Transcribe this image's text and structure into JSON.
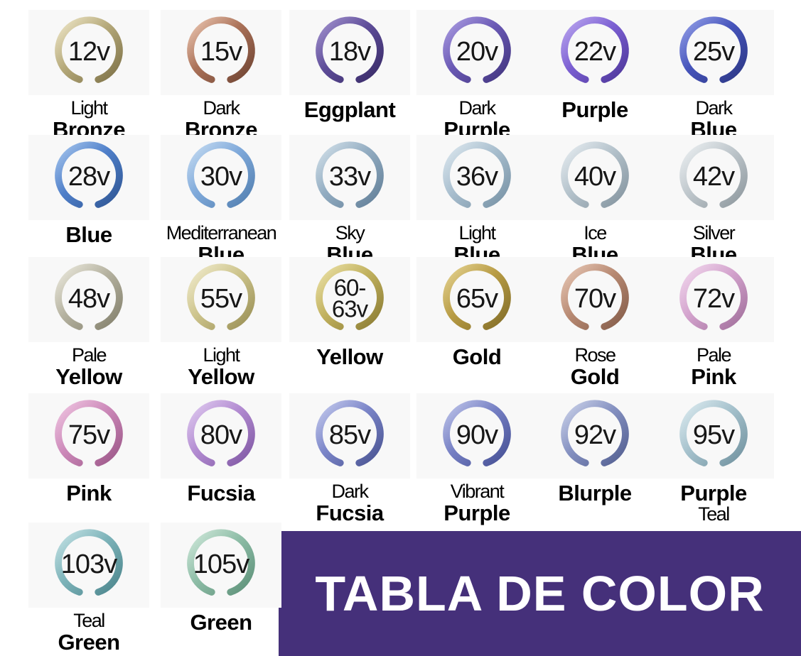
{
  "banner": {
    "text": "TABLA DE COLOR",
    "background": "#45307a",
    "text_color": "#ffffff"
  },
  "rings": [
    {
      "voltage": [
        "12v"
      ],
      "label": [
        {
          "text": "Light",
          "bold": false
        },
        {
          "text": "Bronze",
          "bold": true
        }
      ],
      "colors": {
        "light": "#efe7c8",
        "mid": "#b5a97a",
        "dark": "#7d7147"
      }
    },
    {
      "voltage": [
        "15v"
      ],
      "label": [
        {
          "text": "Dark",
          "bold": false
        },
        {
          "text": "Bronze",
          "bold": true
        }
      ],
      "colors": {
        "light": "#ecc7b2",
        "mid": "#aa7158",
        "dark": "#6f4433"
      }
    },
    {
      "voltage": [
        "18v"
      ],
      "label": [
        {
          "text": "Eggplant",
          "bold": true
        }
      ],
      "colors": {
        "light": "#a393cf",
        "mid": "#5e4d99",
        "dark": "#382a66"
      }
    },
    {
      "voltage": [
        "20v"
      ],
      "label": [
        {
          "text": "Dark",
          "bold": false
        },
        {
          "text": "Purple",
          "bold": true
        }
      ],
      "colors": {
        "light": "#ab9de2",
        "mid": "#6a59b4",
        "dark": "#42357f"
      }
    },
    {
      "voltage": [
        "22v"
      ],
      "label": [
        {
          "text": "Purple",
          "bold": true
        }
      ],
      "colors": {
        "light": "#bca8f0",
        "mid": "#7b5fd2",
        "dark": "#4d3699"
      }
    },
    {
      "voltage": [
        "25v"
      ],
      "label": [
        {
          "text": "Dark",
          "bold": false
        },
        {
          "text": "Blue",
          "bold": true
        }
      ],
      "colors": {
        "light": "#94a0e8",
        "mid": "#4654bb",
        "dark": "#2c3784"
      }
    },
    {
      "voltage": [
        "28v"
      ],
      "label": [
        {
          "text": "Blue",
          "bold": true
        }
      ],
      "colors": {
        "light": "#a6c6ee",
        "mid": "#4f7fc9",
        "dark": "#2f5694"
      }
    },
    {
      "voltage": [
        "30v"
      ],
      "label": [
        {
          "text": "Mediterranean",
          "bold": false
        },
        {
          "text": "Blue",
          "bold": true
        }
      ],
      "colors": {
        "light": "#c6dcf2",
        "mid": "#7fa9da",
        "dark": "#527fb0"
      }
    },
    {
      "voltage": [
        "33v"
      ],
      "label": [
        {
          "text": "Sky",
          "bold": false
        },
        {
          "text": "Blue",
          "bold": true
        }
      ],
      "colors": {
        "light": "#d3e1ea",
        "mid": "#92acc1",
        "dark": "#627f98"
      }
    },
    {
      "voltage": [
        "36v"
      ],
      "label": [
        {
          "text": "Light",
          "bold": false
        },
        {
          "text": "Blue",
          "bold": true
        }
      ],
      "colors": {
        "light": "#dde8ef",
        "mid": "#a8bece",
        "dark": "#7792a5"
      }
    },
    {
      "voltage": [
        "40v"
      ],
      "label": [
        {
          "text": "Ice",
          "bold": false
        },
        {
          "text": "Blue",
          "bold": true
        }
      ],
      "colors": {
        "light": "#e7edf1",
        "mid": "#b4c2cb",
        "dark": "#84949f"
      }
    },
    {
      "voltage": [
        "42v"
      ],
      "label": [
        {
          "text": "Silver",
          "bold": false
        },
        {
          "text": "Blue",
          "bold": true
        }
      ],
      "colors": {
        "light": "#ecf0f2",
        "mid": "#bfc7cc",
        "dark": "#8e989e"
      }
    },
    {
      "voltage": [
        "48v"
      ],
      "label": [
        {
          "text": "Pale",
          "bold": false
        },
        {
          "text": "Yellow",
          "bold": true
        }
      ],
      "colors": {
        "light": "#eceade",
        "mid": "#b5b2a0",
        "dark": "#83806c"
      }
    },
    {
      "voltage": [
        "55v"
      ],
      "label": [
        {
          "text": "Light",
          "bold": false
        },
        {
          "text": "Yellow",
          "bold": true
        }
      ],
      "colors": {
        "light": "#f1ecce",
        "mid": "#cdc48c",
        "dark": "#998f55"
      }
    },
    {
      "voltage": [
        "60-",
        "63v"
      ],
      "label": [
        {
          "text": "Yellow",
          "bold": true
        }
      ],
      "colors": {
        "light": "#ece2a8",
        "mid": "#c1b15e",
        "dark": "#8a7b33"
      }
    },
    {
      "voltage": [
        "65v"
      ],
      "label": [
        {
          "text": "Gold",
          "bold": true
        }
      ],
      "colors": {
        "light": "#e5d392",
        "mid": "#b89c45",
        "dark": "#826d28"
      }
    },
    {
      "voltage": [
        "70v"
      ],
      "label": [
        {
          "text": "Rose",
          "bold": false
        },
        {
          "text": "Gold",
          "bold": true
        }
      ],
      "colors": {
        "light": "#e8c8b6",
        "mid": "#b88a73",
        "dark": "#845c49"
      }
    },
    {
      "voltage": [
        "72v"
      ],
      "label": [
        {
          "text": "Pale",
          "bold": false
        },
        {
          "text": "Pink",
          "bold": true
        }
      ],
      "colors": {
        "light": "#f2d8ee",
        "mid": "#d3a3cd",
        "dark": "#a16f9b"
      }
    },
    {
      "voltage": [
        "75v"
      ],
      "label": [
        {
          "text": "Pink",
          "bold": true
        }
      ],
      "colors": {
        "light": "#f0c6e2",
        "mid": "#cc89b9",
        "dark": "#9b5687"
      }
    },
    {
      "voltage": [
        "80v"
      ],
      "label": [
        {
          "text": "Fucsia",
          "bold": true
        }
      ],
      "colors": {
        "light": "#e0cbf0",
        "mid": "#b28bd1",
        "dark": "#7f57a3"
      }
    },
    {
      "voltage": [
        "85v"
      ],
      "label": [
        {
          "text": "Dark",
          "bold": false
        },
        {
          "text": "Fucsia",
          "bold": true
        }
      ],
      "colors": {
        "light": "#c5cbee",
        "mid": "#7b85c8",
        "dark": "#495391"
      }
    },
    {
      "voltage": [
        "90v"
      ],
      "label": [
        {
          "text": "Vibrant",
          "bold": false
        },
        {
          "text": "Purple",
          "bold": true
        }
      ],
      "colors": {
        "light": "#bfc5ea",
        "mid": "#7680c4",
        "dark": "#454f94"
      }
    },
    {
      "voltage": [
        "92v"
      ],
      "label": [
        {
          "text": "Blurple",
          "bold": true
        }
      ],
      "colors": {
        "light": "#ccd3ea",
        "mid": "#8591c1",
        "dark": "#525e90"
      }
    },
    {
      "voltage": [
        "95v"
      ],
      "label": [
        {
          "text": "Purple",
          "bold": true
        },
        {
          "text": "Teal",
          "bold": false
        }
      ],
      "colors": {
        "light": "#dcebf0",
        "mid": "#a5c1cc",
        "dark": "#71929f"
      }
    },
    {
      "voltage": [
        "103v"
      ],
      "label": [
        {
          "text": "Teal",
          "bold": false
        },
        {
          "text": "Green",
          "bold": true
        }
      ],
      "colors": {
        "light": "#c4e2e5",
        "mid": "#7db3b9",
        "dark": "#4b858c"
      }
    },
    {
      "voltage": [
        "105v"
      ],
      "label": [
        {
          "text": "Green",
          "bold": true
        }
      ],
      "colors": {
        "light": "#cfe8da",
        "mid": "#8ebda7",
        "dark": "#5c9078"
      }
    }
  ],
  "chart_data": {
    "type": "table",
    "title": "TABLA DE COLOR",
    "columns": [
      "anodizing_voltage",
      "color_name"
    ],
    "rows": [
      [
        "12v",
        "Light Bronze"
      ],
      [
        "15v",
        "Dark Bronze"
      ],
      [
        "18v",
        "Eggplant"
      ],
      [
        "20v",
        "Dark Purple"
      ],
      [
        "22v",
        "Purple"
      ],
      [
        "25v",
        "Dark Blue"
      ],
      [
        "28v",
        "Blue"
      ],
      [
        "30v",
        "Mediterranean Blue"
      ],
      [
        "33v",
        "Sky Blue"
      ],
      [
        "36v",
        "Light Blue"
      ],
      [
        "40v",
        "Ice Blue"
      ],
      [
        "42v",
        "Silver Blue"
      ],
      [
        "48v",
        "Pale Yellow"
      ],
      [
        "55v",
        "Light Yellow"
      ],
      [
        "60-63v",
        "Yellow"
      ],
      [
        "65v",
        "Gold"
      ],
      [
        "70v",
        "Rose Gold"
      ],
      [
        "72v",
        "Pale Pink"
      ],
      [
        "75v",
        "Pink"
      ],
      [
        "80v",
        "Fucsia"
      ],
      [
        "85v",
        "Dark Fucsia"
      ],
      [
        "90v",
        "Vibrant Purple"
      ],
      [
        "92v",
        "Blurple"
      ],
      [
        "95v",
        "Purple Teal"
      ],
      [
        "103v",
        "Teal Green"
      ],
      [
        "105v",
        "Green"
      ]
    ],
    "layout": {
      "grid_columns": 6,
      "grid_rows": 5,
      "banner_position": "bottom-right"
    }
  }
}
